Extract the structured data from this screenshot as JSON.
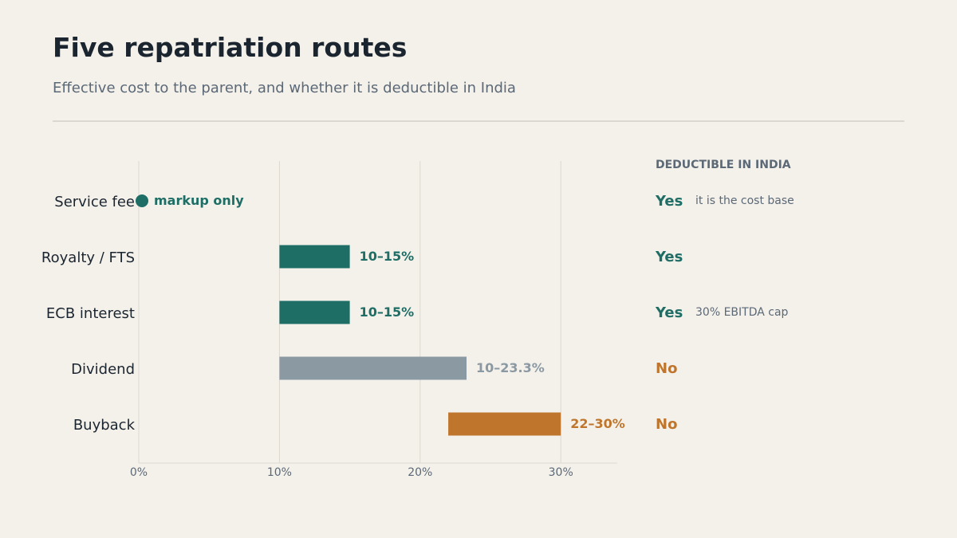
{
  "title": "Five repatriation routes",
  "subtitle": "Effective cost to the parent, and whether it is deductible in India",
  "colors": {
    "teal": "#1e6e66",
    "grey": "#8b99a3",
    "orange": "#bf762c",
    "axis_text": "#5b6876",
    "grid": "#dcd8d0",
    "label_text": "#1b2530"
  },
  "chart_data": {
    "type": "bar",
    "orientation": "horizontal",
    "subtype": "range",
    "categories": [
      "Service fee",
      "Royalty / FTS",
      "ECB interest",
      "Dividend",
      "Buyback"
    ],
    "ranges": [
      [
        0,
        0
      ],
      [
        10,
        15
      ],
      [
        10,
        15
      ],
      [
        10,
        23.3
      ],
      [
        22,
        30
      ]
    ],
    "labels": [
      "markup only",
      "10–15%",
      "10–15%",
      "10–23.3%",
      "22–30%"
    ],
    "colors": [
      "#1e6e66",
      "#1e6e66",
      "#1e6e66",
      "#8b99a3",
      "#bf762c"
    ],
    "xlim": [
      0,
      34
    ],
    "xticks": [
      0,
      10,
      20,
      30
    ],
    "xtick_labels": [
      "0%",
      "10%",
      "20%",
      "30%"
    ],
    "grid": true
  },
  "deductible": {
    "header": "DEDUCTIBLE IN INDIA",
    "rows": [
      {
        "value": "Yes",
        "note": "it is the cost base",
        "color": "#1e6e66"
      },
      {
        "value": "Yes",
        "note": "",
        "color": "#1e6e66"
      },
      {
        "value": "Yes",
        "note": "30% EBITDA cap",
        "color": "#1e6e66"
      },
      {
        "value": "No",
        "note": "",
        "color": "#bf762c"
      },
      {
        "value": "No",
        "note": "",
        "color": "#bf762c"
      }
    ]
  }
}
